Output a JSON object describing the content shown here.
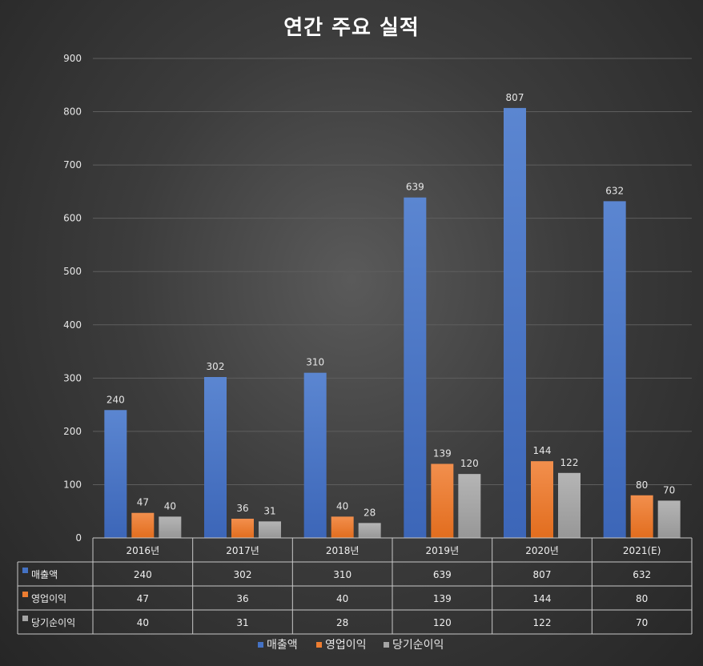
{
  "chart_data": {
    "type": "bar",
    "title": "연간 주요 실적",
    "categories": [
      "2016년",
      "2017년",
      "2018년",
      "2019년",
      "2020년",
      "2021(E)"
    ],
    "series": [
      {
        "name": "매출액",
        "values": [
          240,
          302,
          310,
          639,
          807,
          632
        ],
        "color": "#4472c4"
      },
      {
        "name": "영업이익",
        "values": [
          47,
          36,
          40,
          139,
          144,
          80
        ],
        "color": "#ed7d31"
      },
      {
        "name": "당기순이익",
        "values": [
          40,
          31,
          28,
          120,
          122,
          70
        ],
        "color": "#a5a5a5"
      }
    ],
    "ylim": [
      0,
      900
    ],
    "yticks": [
      0,
      100,
      200,
      300,
      400,
      500,
      600,
      700,
      800,
      900
    ],
    "grid": true,
    "data_table": true,
    "legend": "bottom"
  }
}
